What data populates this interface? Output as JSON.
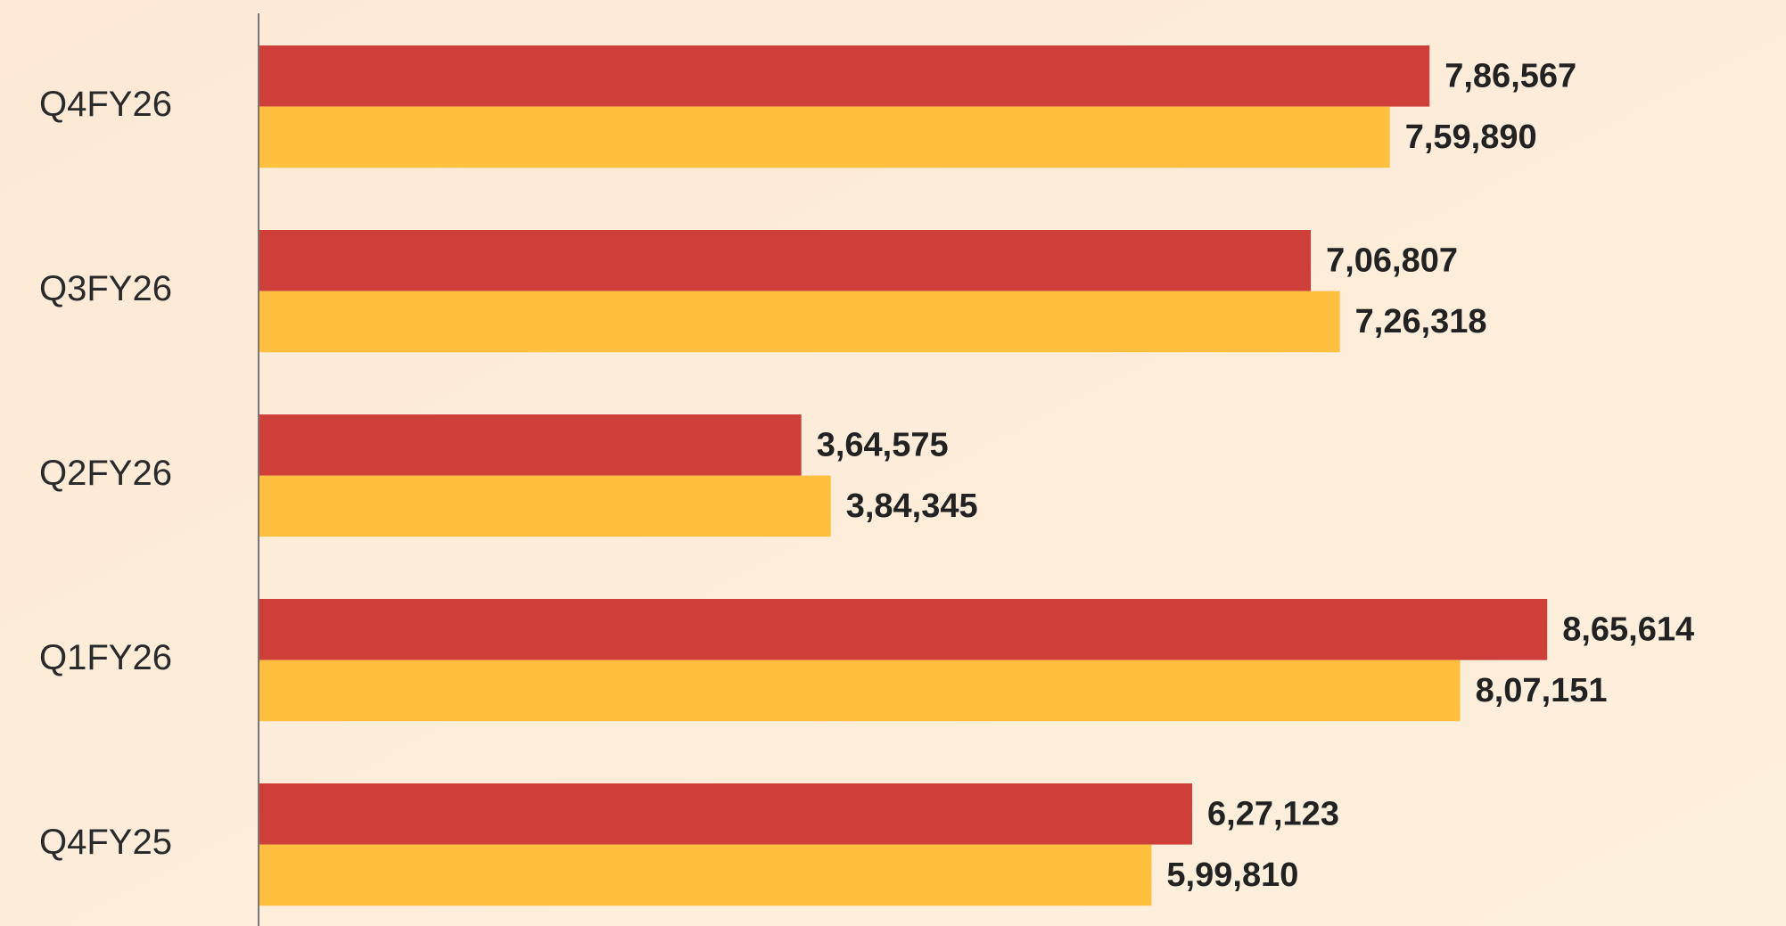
{
  "chart_data": {
    "type": "bar",
    "orientation": "horizontal",
    "categories": [
      "Q4FY26",
      "Q3FY26",
      "Q2FY26",
      "Q1FY26",
      "Q4FY25"
    ],
    "series": [
      {
        "color": "#cf3f3a",
        "values": [
          786567,
          706807,
          364575,
          865614,
          627123
        ],
        "value_labels": [
          "7,86,567",
          "7,06,807",
          "3,64,575",
          "8,65,614",
          "6,27,123"
        ]
      },
      {
        "color": "#fec03e",
        "values": [
          759890,
          726318,
          384345,
          807151,
          599810
        ],
        "value_labels": [
          "7,59,890",
          "7,26,318",
          "3,84,345",
          "8,07,151",
          "5,99,810"
        ]
      }
    ],
    "xlim": [
      0,
      1026000
    ]
  }
}
